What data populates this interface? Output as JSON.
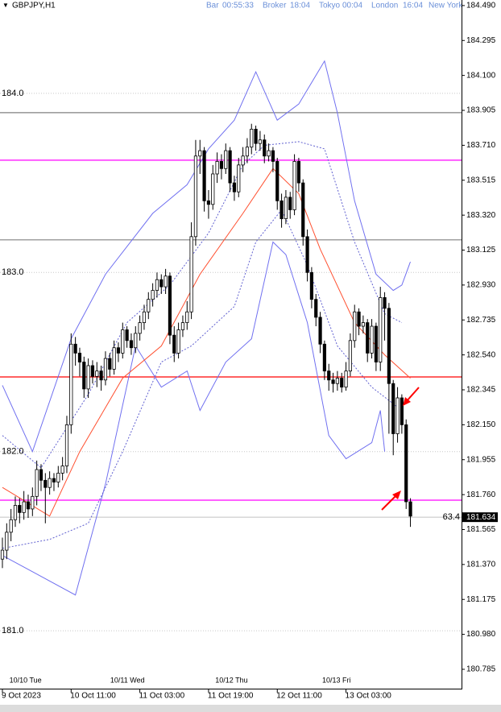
{
  "header": {
    "symbol": "GBPJPY,H1",
    "clock": [
      {
        "label": "Bar",
        "value": "00:55:33"
      },
      {
        "label": "Broker",
        "value": "18:04"
      },
      {
        "label": "Tokyo",
        "value": "00:04"
      },
      {
        "label": "London",
        "value": "16:04"
      },
      {
        "label": "New York",
        "value": null
      }
    ]
  },
  "chart_data": {
    "type": "candlestick",
    "open": [
      181.4,
      181.45,
      181.55,
      181.62,
      181.7,
      181.66,
      181.72,
      181.68,
      181.75,
      181.9,
      181.84,
      181.8,
      181.85,
      181.83,
      181.88,
      181.92,
      182.15,
      182.6,
      182.55,
      182.5,
      182.35,
      182.48,
      182.42,
      182.45,
      182.4,
      182.52,
      182.46,
      182.58,
      182.55,
      182.68,
      182.62,
      182.58,
      182.66,
      182.72,
      182.78,
      182.85,
      182.9,
      182.96,
      182.92,
      182.98,
      182.65,
      182.55,
      182.68,
      182.72,
      182.78,
      183.2,
      183.65,
      183.68,
      183.4,
      183.38,
      183.55,
      183.62,
      183.58,
      183.68,
      183.5,
      183.45,
      183.6,
      183.65,
      183.7,
      183.8,
      183.72,
      183.74,
      183.65,
      183.68,
      183.62,
      183.4,
      183.3,
      183.42,
      183.35,
      183.62,
      183.5,
      183.2,
      183.0,
      182.85,
      182.75,
      182.6,
      182.45,
      182.4,
      182.38,
      182.41,
      182.36,
      182.45,
      182.62,
      182.78,
      182.7,
      182.72,
      182.55,
      182.7,
      182.5,
      182.86,
      182.8,
      182.38,
      182.1,
      182.3,
      182.15,
      181.72
    ],
    "high": [
      181.52,
      181.6,
      181.68,
      181.75,
      181.74,
      181.78,
      181.76,
      181.8,
      181.95,
      181.93,
      181.88,
      181.89,
      181.88,
      181.92,
      181.97,
      182.2,
      182.66,
      182.64,
      182.58,
      182.53,
      182.52,
      182.51,
      182.5,
      182.48,
      182.56,
      182.55,
      182.62,
      182.61,
      182.72,
      182.7,
      182.66,
      182.7,
      182.76,
      182.82,
      182.89,
      182.94,
      183.0,
      182.99,
      183.02,
      183.0,
      182.7,
      182.72,
      182.76,
      182.84,
      183.28,
      183.74,
      183.74,
      183.7,
      183.46,
      183.6,
      183.67,
      183.66,
      183.72,
      183.7,
      183.54,
      183.64,
      183.7,
      183.75,
      183.83,
      183.82,
      183.79,
      183.77,
      183.72,
      183.7,
      183.64,
      183.44,
      183.46,
      183.45,
      183.66,
      183.64,
      183.52,
      183.24,
      183.03,
      182.88,
      182.78,
      182.62,
      182.49,
      182.44,
      182.45,
      182.44,
      182.5,
      182.66,
      182.82,
      182.8,
      182.76,
      182.74,
      182.74,
      182.72,
      182.92,
      182.89,
      182.83,
      182.4,
      182.36,
      182.32,
      182.18,
      181.74
    ],
    "low": [
      181.35,
      181.4,
      181.5,
      181.58,
      181.6,
      181.62,
      181.63,
      181.64,
      181.7,
      181.78,
      181.6,
      181.76,
      181.78,
      181.8,
      181.84,
      181.88,
      182.1,
      182.48,
      182.42,
      182.3,
      182.3,
      182.38,
      182.36,
      182.34,
      182.37,
      182.42,
      182.43,
      182.5,
      182.52,
      182.58,
      182.54,
      182.55,
      182.62,
      182.68,
      182.74,
      182.81,
      182.86,
      182.88,
      182.88,
      182.6,
      182.5,
      182.52,
      182.64,
      182.68,
      182.74,
      183.15,
      183.55,
      183.34,
      183.3,
      183.35,
      183.5,
      183.52,
      183.55,
      183.45,
      183.4,
      183.42,
      183.56,
      183.61,
      183.66,
      183.68,
      183.68,
      183.61,
      183.62,
      183.56,
      183.35,
      183.25,
      183.27,
      183.3,
      183.32,
      183.45,
      183.15,
      182.95,
      182.8,
      182.7,
      182.55,
      182.4,
      182.34,
      182.33,
      182.34,
      182.33,
      182.34,
      182.42,
      182.58,
      182.65,
      182.66,
      182.5,
      182.52,
      182.45,
      182.45,
      182.62,
      182.1,
      181.98,
      182.05,
      182.1,
      181.68,
      181.58
    ],
    "close": [
      181.45,
      181.55,
      181.62,
      181.7,
      181.66,
      181.72,
      181.68,
      181.75,
      181.9,
      181.84,
      181.8,
      181.85,
      181.83,
      181.88,
      181.92,
      182.15,
      182.6,
      182.55,
      182.5,
      182.35,
      182.48,
      182.42,
      182.45,
      182.4,
      182.52,
      182.46,
      182.58,
      182.55,
      182.68,
      182.62,
      182.58,
      182.66,
      182.72,
      182.78,
      182.85,
      182.9,
      182.96,
      182.92,
      182.98,
      182.65,
      182.55,
      182.68,
      182.72,
      182.78,
      183.2,
      183.65,
      183.68,
      183.4,
      183.38,
      183.55,
      183.62,
      183.58,
      183.68,
      183.5,
      183.45,
      183.6,
      183.65,
      183.7,
      183.8,
      183.72,
      183.74,
      183.65,
      183.68,
      183.62,
      183.4,
      183.3,
      183.42,
      183.35,
      183.62,
      183.5,
      183.2,
      183.0,
      182.85,
      182.75,
      182.6,
      182.45,
      182.4,
      182.38,
      182.41,
      182.36,
      182.45,
      182.62,
      182.78,
      182.7,
      182.72,
      182.55,
      182.7,
      182.5,
      182.86,
      182.8,
      182.38,
      182.1,
      182.3,
      182.15,
      181.72,
      181.64
    ],
    "overlays": [
      {
        "color": "#7070f0",
        "dashed": false,
        "x": [
          0,
          7,
          16,
          24,
          35,
          43,
          48,
          54,
          59,
          64,
          69,
          75,
          78,
          82,
          87,
          91,
          93,
          95
        ],
        "values": [
          182.37,
          182.0,
          182.63,
          182.99,
          183.33,
          183.49,
          183.69,
          183.85,
          184.12,
          183.85,
          183.94,
          184.18,
          183.89,
          183.4,
          182.99,
          182.9,
          182.93,
          183.06
        ]
      },
      {
        "color": "#7070f0",
        "dashed": false,
        "x": [
          0,
          7,
          17,
          24,
          31,
          37,
          43,
          46,
          52,
          58,
          63,
          66,
          71,
          76,
          80,
          86,
          88,
          89
        ],
        "values": [
          181.42,
          181.33,
          181.2,
          181.82,
          182.59,
          182.36,
          182.45,
          182.23,
          182.5,
          182.63,
          183.17,
          183.1,
          182.72,
          182.09,
          181.96,
          182.05,
          182.23,
          182.0
        ]
      },
      {
        "color": "#ff5030",
        "dashed": false,
        "x": [
          0,
          11,
          18,
          28,
          37,
          46,
          56,
          63,
          69,
          74,
          82,
          89,
          95
        ],
        "values": [
          181.8,
          181.64,
          182.0,
          182.41,
          182.59,
          182.99,
          183.33,
          183.58,
          183.44,
          183.13,
          182.72,
          182.54,
          182.41
        ]
      },
      {
        "color": "#6060d0",
        "dashed": true,
        "x": [
          0,
          9,
          20,
          29,
          39,
          48,
          56,
          61,
          69,
          75,
          82,
          89,
          93
        ],
        "values": [
          182.09,
          181.91,
          182.32,
          182.72,
          182.93,
          183.22,
          183.6,
          183.71,
          183.73,
          183.69,
          183.17,
          182.77,
          182.72
        ]
      },
      {
        "color": "#6060d0",
        "dashed": true,
        "x": [
          0,
          11,
          20,
          28,
          37,
          44,
          54,
          59,
          65,
          71,
          78,
          86,
          93
        ],
        "values": [
          181.46,
          181.51,
          181.6,
          182.0,
          182.5,
          182.59,
          182.81,
          183.17,
          183.35,
          183.04,
          182.59,
          182.36,
          182.23
        ]
      }
    ],
    "levels": [
      {
        "value": 183.892,
        "color": "#808080"
      },
      {
        "value": 183.627,
        "color": "#ff00ff"
      },
      {
        "value": 183.182,
        "color": "#808080"
      },
      {
        "value": 182.417,
        "color": "#ff0000"
      },
      {
        "value": 181.729,
        "color": "#ff00ff"
      }
    ],
    "last_price": 181.634,
    "indicator_label": "63.4",
    "xlim": [
      -0.56,
      106.9
    ],
    "ylim": [
      180.677,
      184.521
    ],
    "yticks": [
      {
        "value": 184.49,
        "label": "184.490"
      },
      184.295,
      {
        "value": 184.1,
        "label": "184.100"
      },
      183.905,
      {
        "value": 183.71,
        "label": "183.710"
      },
      183.515,
      {
        "value": 183.32,
        "label": "183.320"
      },
      183.125,
      {
        "value": 182.93,
        "label": "182.930"
      },
      182.735,
      {
        "value": 182.54,
        "label": "182.540"
      },
      182.345,
      {
        "value": 182.15,
        "label": "182.150"
      },
      181.955,
      {
        "value": 181.76,
        "label": "181.760"
      },
      181.565,
      {
        "value": 181.37,
        "label": "181.370"
      },
      181.175,
      {
        "value": 180.98,
        "label": "180.980"
      },
      180.785
    ],
    "grid_levels": [
      {
        "value": 184,
        "label": "184.0"
      },
      {
        "value": 183,
        "label": "183.0"
      },
      {
        "value": 182,
        "label": "182.0"
      },
      {
        "value": 181,
        "label": "181.0"
      }
    ],
    "xticks": [
      {
        "value": 0,
        "label": "9 Oct 2023"
      },
      {
        "value": 16,
        "label": "10 Oct 11:00"
      },
      {
        "value": 32,
        "label": "11 Oct 03:00"
      },
      {
        "value": 48,
        "label": "11 Oct 19:00"
      },
      {
        "value": 64,
        "label": "12 Oct 11:00"
      },
      {
        "value": 80,
        "label": "13 Oct 03:00"
      }
    ],
    "day_labels": [
      {
        "value": 5,
        "label": "10/10 Tue"
      },
      {
        "value": 29,
        "label": "10/11 Wed"
      },
      {
        "value": 53,
        "label": "10/12 Thu"
      },
      {
        "value": 77,
        "label": "10/13 Fri"
      }
    ]
  }
}
